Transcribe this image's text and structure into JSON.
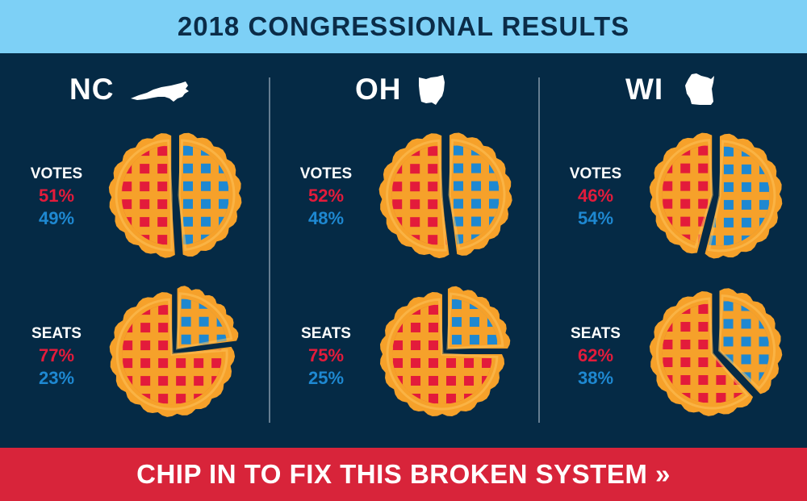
{
  "header": {
    "title": "2018 CONGRESSIONAL RESULTS"
  },
  "cta": {
    "label": "CHIP IN TO FIX THIS BROKEN SYSTEM »"
  },
  "colors": {
    "header_bg": "#7dd0f6",
    "background": "#052a45",
    "cta_bg": "#d8243a",
    "republican_red": "#e31b3b",
    "democratic_blue": "#1e88d1",
    "crust_orange": "#f6a12a",
    "crust_light": "#fdc35a"
  },
  "states": [
    {
      "abbr": "NC",
      "icon": "north-carolina-map-icon",
      "votes": {
        "label": "VOTES",
        "red": "51%",
        "blue": "49%"
      },
      "seats": {
        "label": "SEATS",
        "red": "77%",
        "blue": "23%"
      }
    },
    {
      "abbr": "OH",
      "icon": "ohio-map-icon",
      "votes": {
        "label": "VOTES",
        "red": "52%",
        "blue": "48%"
      },
      "seats": {
        "label": "SEATS",
        "red": "75%",
        "blue": "25%"
      }
    },
    {
      "abbr": "WI",
      "icon": "wisconsin-map-icon",
      "votes": {
        "label": "VOTES",
        "red": "46%",
        "blue": "54%"
      },
      "seats": {
        "label": "SEATS",
        "red": "62%",
        "blue": "38%"
      }
    }
  ],
  "chart_data": {
    "type": "pie",
    "title": "2018 CONGRESSIONAL RESULTS",
    "series_labels": [
      "red",
      "blue"
    ],
    "charts": [
      {
        "state": "NC",
        "metric": "VOTES",
        "values": [
          51,
          49
        ]
      },
      {
        "state": "NC",
        "metric": "SEATS",
        "values": [
          77,
          23
        ]
      },
      {
        "state": "OH",
        "metric": "VOTES",
        "values": [
          52,
          48
        ]
      },
      {
        "state": "OH",
        "metric": "SEATS",
        "values": [
          75,
          25
        ]
      },
      {
        "state": "WI",
        "metric": "VOTES",
        "values": [
          46,
          54
        ]
      },
      {
        "state": "WI",
        "metric": "SEATS",
        "values": [
          62,
          38
        ]
      }
    ]
  }
}
